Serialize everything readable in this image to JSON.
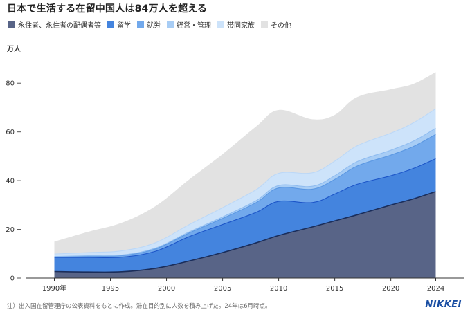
{
  "title": "日本で生活する在留中国人は84万人を超える",
  "unit_label": "万人",
  "footer_note": "注）出入国在留管理庁の公表資料をもとに作成。滞在目的別に人数を積み上げた。24年は6月時点。",
  "logo_text": "NIKKEI",
  "chart_data": {
    "type": "area",
    "stacked": true,
    "title": "日本で生活する在留中国人は84万人を超える",
    "ylabel": "万人",
    "xlabel": "",
    "x": [
      1990,
      1993,
      1996,
      1999,
      2002,
      2005,
      2008,
      2010,
      2013,
      2015,
      2017,
      2020,
      2022,
      2024
    ],
    "x_ticks": [
      1990,
      1995,
      2000,
      2005,
      2010,
      2015,
      2020,
      2024
    ],
    "x_tick_labels": [
      "1990年",
      "1995",
      "2000",
      "2005",
      "2010",
      "2015",
      "2020",
      "2024"
    ],
    "y_ticks": [
      0,
      20,
      40,
      60,
      80
    ],
    "ylim": [
      0,
      90
    ],
    "xlim": [
      1987.5,
      2026.5
    ],
    "grid": false,
    "legend_position": "top",
    "series": [
      {
        "name": "永住者、永住者の配偶者等",
        "color": "#586487",
        "edge": "#1a2d5a",
        "values": [
          2.7,
          2.5,
          2.6,
          4.0,
          7.0,
          10.5,
          14.5,
          17.5,
          21.0,
          23.5,
          26.0,
          30.0,
          32.5,
          35.5
        ]
      },
      {
        "name": "留学",
        "color": "#4484de",
        "edge": "#1c55c8",
        "values": [
          5.8,
          6.0,
          6.0,
          7.0,
          10.0,
          11.5,
          12.5,
          14.0,
          10.0,
          11.0,
          12.5,
          12.0,
          12.5,
          13.5
        ]
      },
      {
        "name": "就労",
        "color": "#72a9ec",
        "edge": "#5a97e2",
        "values": [
          0.3,
          0.5,
          0.7,
          1.0,
          1.5,
          2.5,
          4.0,
          5.5,
          5.5,
          6.0,
          7.5,
          8.5,
          9.0,
          10.0
        ]
      },
      {
        "name": "経営・管理",
        "color": "#a8cdf5",
        "edge": "#8fbcf0",
        "values": [
          0.1,
          0.2,
          0.2,
          0.3,
          0.4,
          0.6,
          0.8,
          1.0,
          1.2,
          1.5,
          1.8,
          2.0,
          2.2,
          2.5
        ]
      },
      {
        "name": "帯同家族",
        "color": "#cde3fa",
        "edge": "#bcd8f7",
        "values": [
          1.0,
          1.3,
          1.7,
          2.2,
          3.0,
          3.8,
          4.5,
          5.0,
          5.5,
          6.0,
          6.5,
          7.0,
          7.5,
          8.0
        ]
      },
      {
        "name": "その他",
        "color": "#e2e2e2",
        "edge": "#dcdcdc",
        "values": [
          5.1,
          8.5,
          11.5,
          15.0,
          18.5,
          22.0,
          26.0,
          26.0,
          22.0,
          19.0,
          20.0,
          18.0,
          16.0,
          15.0
        ]
      }
    ]
  }
}
